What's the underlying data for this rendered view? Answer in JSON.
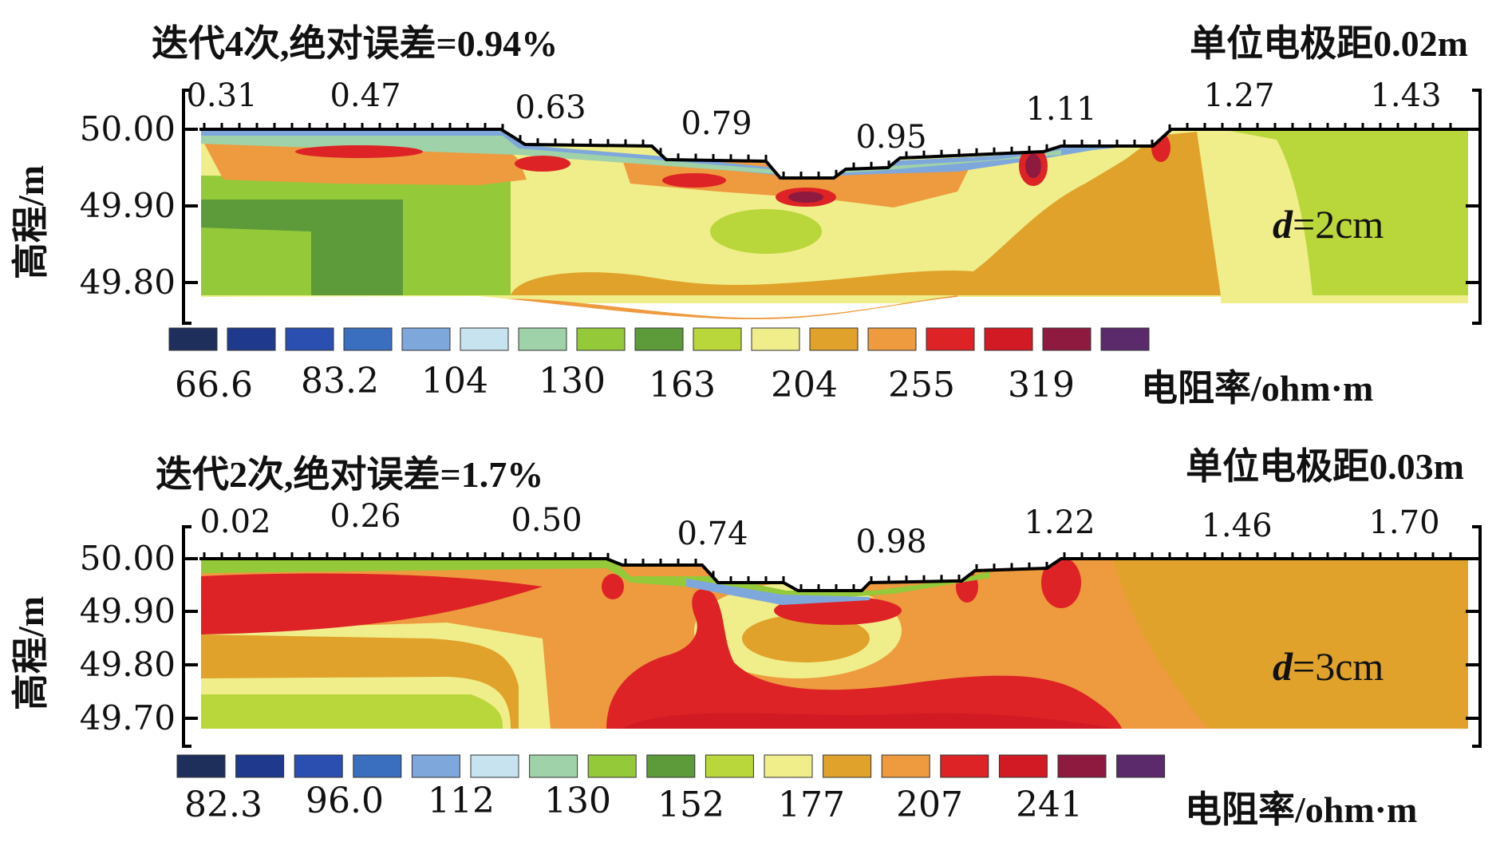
{
  "chart_data": [
    {
      "type": "heatmap",
      "title": "迭代4次,绝对误差=0.94%",
      "subtitle": "单位电极距0.02m",
      "ylabel": "高程/m",
      "x_tick_labels": [
        "0.31",
        "0.47",
        "0.63",
        "0.79",
        "0.95",
        "1.11",
        "1.27",
        "1.43"
      ],
      "y_tick_labels": [
        "50.00",
        "49.90",
        "49.80"
      ],
      "annotation_var": "d",
      "annotation_val": "=2cm",
      "legend_values": [
        "66.6",
        "83.2",
        "104",
        "130",
        "163",
        "204",
        "255",
        "319"
      ],
      "legend_colors": [
        "#1e2f5c",
        "#1f3a8c",
        "#2a4fb0",
        "#3a6fbf",
        "#7ea7dc",
        "#c6e3ef",
        "#9fd2a8",
        "#94c93a",
        "#5c9a3a",
        "#b9d63a",
        "#f0ee8a",
        "#e0a22a",
        "#ee9a3e",
        "#dd2326",
        "#d11a24",
        "#8e1a40",
        "#5a2a6a"
      ],
      "colorbar_label": "电阻率/ohm·m"
    },
    {
      "type": "heatmap",
      "title": "迭代2次,绝对误差=1.7%",
      "subtitle": "单位电极距0.03m",
      "ylabel": "高程/m",
      "x_tick_labels": [
        "0.02",
        "0.26",
        "0.50",
        "0.74",
        "0.98",
        "1.22",
        "1.46",
        "1.70"
      ],
      "y_tick_labels": [
        "50.00",
        "49.90",
        "49.80",
        "49.70"
      ],
      "annotation_var": "d",
      "annotation_val": "=3cm",
      "legend_values": [
        "82.3",
        "96.0",
        "112",
        "130",
        "152",
        "177",
        "207",
        "241"
      ],
      "legend_colors": [
        "#1e2f5c",
        "#1f3a8c",
        "#2a4fb0",
        "#3a6fbf",
        "#7ea7dc",
        "#c6e3ef",
        "#9fd2a8",
        "#94c93a",
        "#5c9a3a",
        "#b9d63a",
        "#f0ee8a",
        "#e0a22a",
        "#ee9a3e",
        "#dd2326",
        "#d11a24",
        "#8e1a40",
        "#5a2a6a"
      ],
      "colorbar_label": "电阻率/ohm·m"
    }
  ]
}
